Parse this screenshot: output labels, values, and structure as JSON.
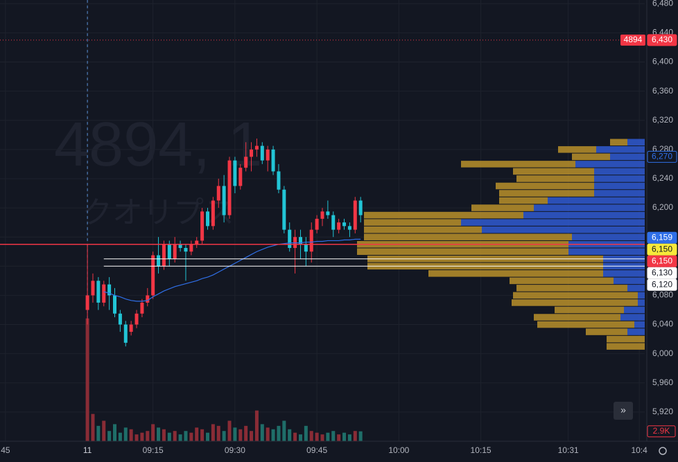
{
  "chart_data": {
    "type": "candlestick",
    "watermark": "4894, 1",
    "watermark_name": "クオリプス",
    "xlim": [
      "08:47",
      "10:45"
    ],
    "xticks": [
      {
        "value": "08:48",
        "label": "45"
      },
      {
        "value": "09:03",
        "label": "11"
      },
      {
        "value": "09:15",
        "label": "09:15"
      },
      {
        "value": "09:30",
        "label": "09:30"
      },
      {
        "value": "09:45",
        "label": "09:45"
      },
      {
        "value": "10:00",
        "label": "10:00"
      },
      {
        "value": "10:15",
        "label": "10:15"
      },
      {
        "value": "10:31",
        "label": "10:31"
      },
      {
        "value": "10:44",
        "label": "10:4"
      }
    ],
    "ylim": [
      5880,
      6485
    ],
    "yticks": [
      {
        "value": 6480,
        "label": "6,480"
      },
      {
        "value": 6440,
        "label": "6,440"
      },
      {
        "value": 6400,
        "label": "6,400"
      },
      {
        "value": 6360,
        "label": "6,360"
      },
      {
        "value": 6320,
        "label": "6,320"
      },
      {
        "value": 6280,
        "label": "6,280"
      },
      {
        "value": 6240,
        "label": "6,240"
      },
      {
        "value": 6200,
        "label": "6,200"
      },
      {
        "value": 6160,
        "label": "6,160"
      },
      {
        "value": 6120,
        "label": "6,120"
      },
      {
        "value": 6080,
        "label": "6,080"
      },
      {
        "value": 6040,
        "label": "6,040"
      },
      {
        "value": 6000,
        "label": "6,000"
      },
      {
        "value": 5960,
        "label": "5,960"
      },
      {
        "value": 5920,
        "label": "5,920"
      }
    ],
    "grid": true,
    "up_color": "#f23645",
    "down_color": "#22c5d6",
    "up_volume_color": "#8a2c36",
    "down_volume_color": "#1f6e69",
    "candles": {
      "x": [
        "09:03",
        "09:04",
        "09:05",
        "09:06",
        "09:07",
        "09:08",
        "09:09",
        "09:10",
        "09:11",
        "09:12",
        "09:13",
        "09:14",
        "09:15",
        "09:16",
        "09:17",
        "09:18",
        "09:19",
        "09:20",
        "09:21",
        "09:22",
        "09:23",
        "09:24",
        "09:25",
        "09:26",
        "09:27",
        "09:28",
        "09:29",
        "09:30",
        "09:31",
        "09:32",
        "09:33",
        "09:34",
        "09:35",
        "09:36",
        "09:37",
        "09:38",
        "09:39",
        "09:40",
        "09:41",
        "09:42",
        "09:43",
        "09:44",
        "09:45",
        "09:46",
        "09:47",
        "09:48",
        "09:49",
        "09:50",
        "09:51",
        "09:52",
        "09:53"
      ],
      "open": [
        6060,
        6080,
        6100,
        6070,
        6095,
        6080,
        6055,
        6040,
        6030,
        6040,
        6055,
        6070,
        6080,
        6135,
        6120,
        6150,
        6130,
        6150,
        6145,
        6140,
        6150,
        6155,
        6195,
        6175,
        6210,
        6230,
        6190,
        6265,
        6230,
        6255,
        6270,
        6280,
        6285,
        6265,
        6280,
        6250,
        6225,
        6170,
        6145,
        6160,
        6150,
        6140,
        6170,
        6185,
        6195,
        6190,
        6170,
        6180,
        6175,
        6170,
        6210
      ],
      "high": [
        6150,
        6110,
        6105,
        6100,
        6105,
        6090,
        6060,
        6045,
        6045,
        6060,
        6075,
        6090,
        6140,
        6160,
        6155,
        6155,
        6160,
        6155,
        6150,
        6155,
        6160,
        6200,
        6200,
        6215,
        6240,
        6245,
        6270,
        6270,
        6260,
        6290,
        6290,
        6295,
        6290,
        6285,
        6285,
        6260,
        6230,
        6180,
        6170,
        6170,
        6160,
        6180,
        6190,
        6200,
        6210,
        6195,
        6185,
        6185,
        6180,
        6215,
        6215
      ],
      "low": [
        6040,
        6070,
        6060,
        6065,
        6060,
        6050,
        6030,
        6010,
        6025,
        6035,
        6050,
        6065,
        6075,
        6110,
        6115,
        6120,
        6125,
        6140,
        6100,
        6135,
        6145,
        6150,
        6170,
        6170,
        6200,
        6180,
        6185,
        6220,
        6225,
        6250,
        6250,
        6270,
        6260,
        6250,
        6245,
        6220,
        6165,
        6140,
        6110,
        6130,
        6120,
        6125,
        6165,
        6175,
        6185,
        6160,
        6165,
        6170,
        6160,
        6165,
        6180
      ],
      "close": [
        6080,
        6100,
        6070,
        6095,
        6080,
        6055,
        6040,
        6015,
        6040,
        6055,
        6070,
        6080,
        6135,
        6120,
        6150,
        6130,
        6150,
        6145,
        6140,
        6150,
        6155,
        6195,
        6175,
        6210,
        6230,
        6190,
        6265,
        6230,
        6255,
        6270,
        6280,
        6285,
        6265,
        6280,
        6250,
        6225,
        6170,
        6145,
        6160,
        6150,
        6140,
        6170,
        6185,
        6195,
        6190,
        6170,
        6180,
        6175,
        6170,
        6210,
        6190
      ],
      "volume": [
        36000,
        8000,
        4500,
        6000,
        3000,
        5000,
        2500,
        4000,
        3500,
        2000,
        2500,
        3000,
        5000,
        4000,
        3500,
        2500,
        3000,
        2000,
        3000,
        2500,
        4000,
        3500,
        2500,
        5000,
        4500,
        3000,
        6000,
        4000,
        3500,
        4500,
        3000,
        9000,
        5000,
        4000,
        3500,
        4500,
        6000,
        3500,
        2500,
        2000,
        4500,
        3000,
        2500,
        2000,
        2500,
        3000,
        2000,
        2500,
        2000,
        3000,
        2900
      ]
    },
    "volume_ylim": [
      0,
      40000
    ],
    "current_volume": {
      "value": 2900,
      "label": "2.9K"
    },
    "vwap": {
      "color": "#2f6fe8",
      "values": [
        null,
        null,
        null,
        6085,
        6083,
        6080,
        6078,
        6075,
        6073,
        6072,
        6072,
        6073,
        6078,
        6082,
        6086,
        6089,
        6092,
        6094,
        6096,
        6098,
        6100,
        6103,
        6105,
        6108,
        6112,
        6116,
        6120,
        6124,
        6128,
        6132,
        6136,
        6140,
        6143,
        6146,
        6148,
        6150,
        6151,
        6152,
        6152,
        6152,
        6153,
        6153,
        6154,
        6154,
        6155,
        6155,
        6155,
        6156,
        6156,
        6157,
        6157
      ]
    },
    "profile": {
      "up_color": "#2f56c8",
      "down_color": "#b08a2a",
      "xlim": [
        0,
        40000
      ],
      "prices": [
        6290,
        6280,
        6270,
        6260,
        6250,
        6240,
        6230,
        6220,
        6210,
        6200,
        6190,
        6180,
        6170,
        6160,
        6150,
        6140,
        6130,
        6120,
        6110,
        6100,
        6090,
        6080,
        6070,
        6060,
        6050,
        6040,
        6030,
        6020,
        6010
      ],
      "up": [
        2500,
        7000,
        5000,
        10000,
        7300,
        7300,
        7300,
        7300,
        14000,
        16000,
        17500,
        26500,
        23500,
        10500,
        11000,
        11000,
        6000,
        6000,
        6000,
        4500,
        2500,
        1000,
        1000,
        3000,
        3500,
        1500,
        2500,
        0,
        0
      ],
      "down": [
        2500,
        5500,
        5500,
        16500,
        11700,
        11200,
        14200,
        13700,
        7000,
        9000,
        23000,
        14000,
        17000,
        30000,
        30500,
        30500,
        34000,
        34000,
        25200,
        15000,
        16000,
        18000,
        18200,
        10000,
        12500,
        14000,
        6000,
        5500,
        5500
      ]
    },
    "levels": [
      {
        "value": 6430,
        "label": "6,430",
        "name": "4894",
        "color": "#f23645",
        "style": "dotted"
      },
      {
        "value": 6270,
        "label": "6,270",
        "color": "#2f6fe8",
        "style": "tag"
      },
      {
        "value": 6159,
        "label": "6,159",
        "color": "#2f6fe8",
        "style": "tag"
      },
      {
        "value": 6150,
        "label": "6,150",
        "color": "#f7e93a",
        "style": "line"
      },
      {
        "value": 6150,
        "label": "6,150",
        "color": "#f23645",
        "style": "full"
      },
      {
        "value": 6130,
        "label": "6,130",
        "color": "#ffffff",
        "style": "line"
      },
      {
        "value": 6120,
        "label": "6,120",
        "color": "#ffffff",
        "style": "line"
      }
    ]
  }
}
